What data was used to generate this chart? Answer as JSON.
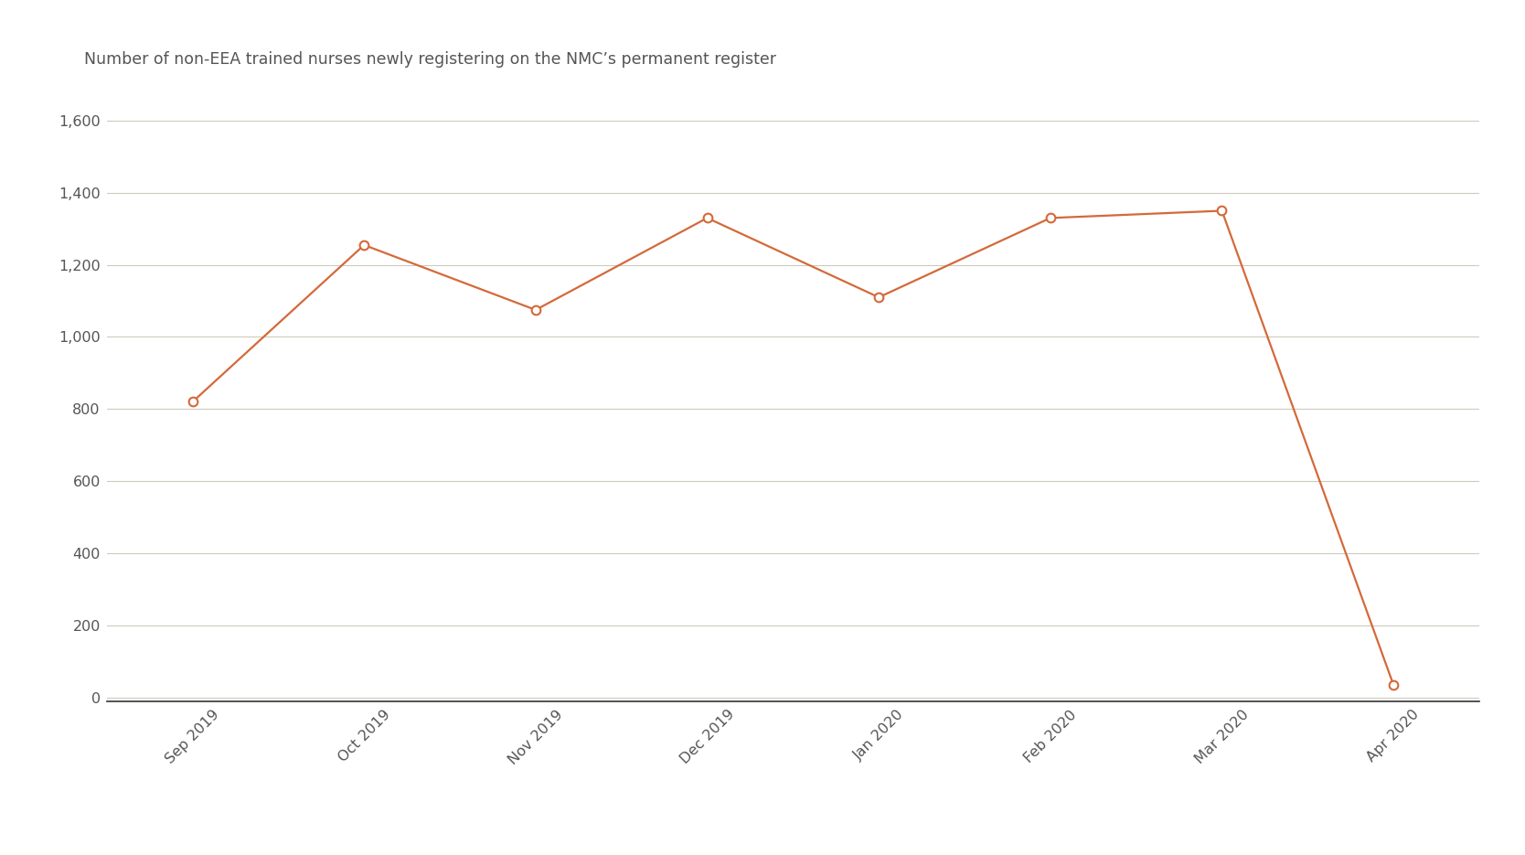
{
  "title": "Number of non-EEA trained nurses newly registering on the NMC’s permanent register",
  "x_labels": [
    "Sep 2019",
    "Oct 2019",
    "Nov 2019",
    "Dec 2019",
    "Jan 2020",
    "Feb 2020",
    "Mar 2020",
    "Apr 2020"
  ],
  "y_values": [
    820,
    1255,
    1075,
    1330,
    1110,
    1330,
    1350,
    35
  ],
  "line_color": "#D4693A",
  "marker_facecolor": "#FFFFFF",
  "marker_edgecolor": "#D4693A",
  "background_color": "#FFFFFF",
  "grid_color": "#CCCCBB",
  "bottom_spine_color": "#333333",
  "tick_color": "#555555",
  "title_color": "#555555",
  "ylim": [
    -10,
    1650
  ],
  "yticks": [
    0,
    200,
    400,
    600,
    800,
    1000,
    1200,
    1400,
    1600
  ],
  "title_fontsize": 12.5,
  "tick_fontsize": 11.5,
  "line_width": 1.6,
  "marker_size": 7,
  "marker_edge_width": 1.5
}
